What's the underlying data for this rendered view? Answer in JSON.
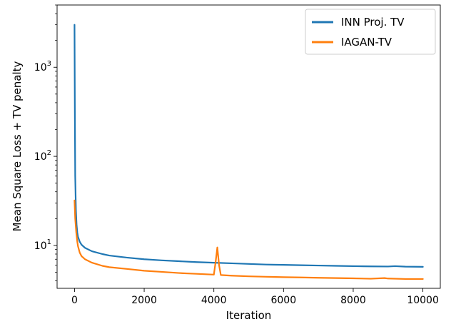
{
  "chart_data": {
    "type": "line",
    "xlabel": "Iteration",
    "ylabel": "Mean Square Loss + TV penalty",
    "xlim": [
      -500,
      10500
    ],
    "ylim": [
      3.3,
      5000
    ],
    "yscale": "log",
    "xticks": [
      0,
      2000,
      4000,
      6000,
      8000,
      10000
    ],
    "yticks": [
      {
        "value": 10,
        "label": "10^1"
      },
      {
        "value": 100,
        "label": "10^2"
      },
      {
        "value": 1000,
        "label": "10^3"
      }
    ],
    "grid": false,
    "legend_position": "top-right",
    "series": [
      {
        "name": "INN Proj. TV",
        "color": "#1f77b4",
        "x": [
          0,
          10,
          20,
          40,
          60,
          80,
          100,
          150,
          200,
          300,
          500,
          800,
          1000,
          1500,
          2000,
          2500,
          3000,
          3500,
          4000,
          4500,
          5000,
          5500,
          6000,
          6500,
          7000,
          7500,
          8000,
          8500,
          9000,
          9200,
          9500,
          10000
        ],
        "y": [
          3000,
          320,
          60,
          25,
          17,
          14,
          12.5,
          11,
          10.2,
          9.4,
          8.6,
          8.0,
          7.7,
          7.3,
          7.0,
          6.8,
          6.65,
          6.5,
          6.4,
          6.3,
          6.2,
          6.1,
          6.05,
          6.0,
          5.95,
          5.9,
          5.85,
          5.82,
          5.8,
          5.85,
          5.78,
          5.75
        ]
      },
      {
        "name": "IAGAN-TV",
        "color": "#ff7f0e",
        "x": [
          0,
          20,
          50,
          80,
          100,
          150,
          200,
          300,
          500,
          800,
          1000,
          1500,
          2000,
          2500,
          3000,
          3500,
          4000,
          4050,
          4100,
          4150,
          4200,
          4500,
          5000,
          5500,
          6000,
          6500,
          7000,
          7500,
          8000,
          8500,
          8900,
          9000,
          9500,
          10000
        ],
        "y": [
          32,
          20,
          14,
          11,
          9.8,
          8.3,
          7.6,
          7.0,
          6.4,
          5.9,
          5.7,
          5.45,
          5.2,
          5.05,
          4.9,
          4.8,
          4.7,
          6.5,
          9.5,
          6.0,
          4.65,
          4.58,
          4.5,
          4.45,
          4.4,
          4.37,
          4.33,
          4.3,
          4.27,
          4.23,
          4.3,
          4.25,
          4.2,
          4.2
        ]
      }
    ]
  }
}
